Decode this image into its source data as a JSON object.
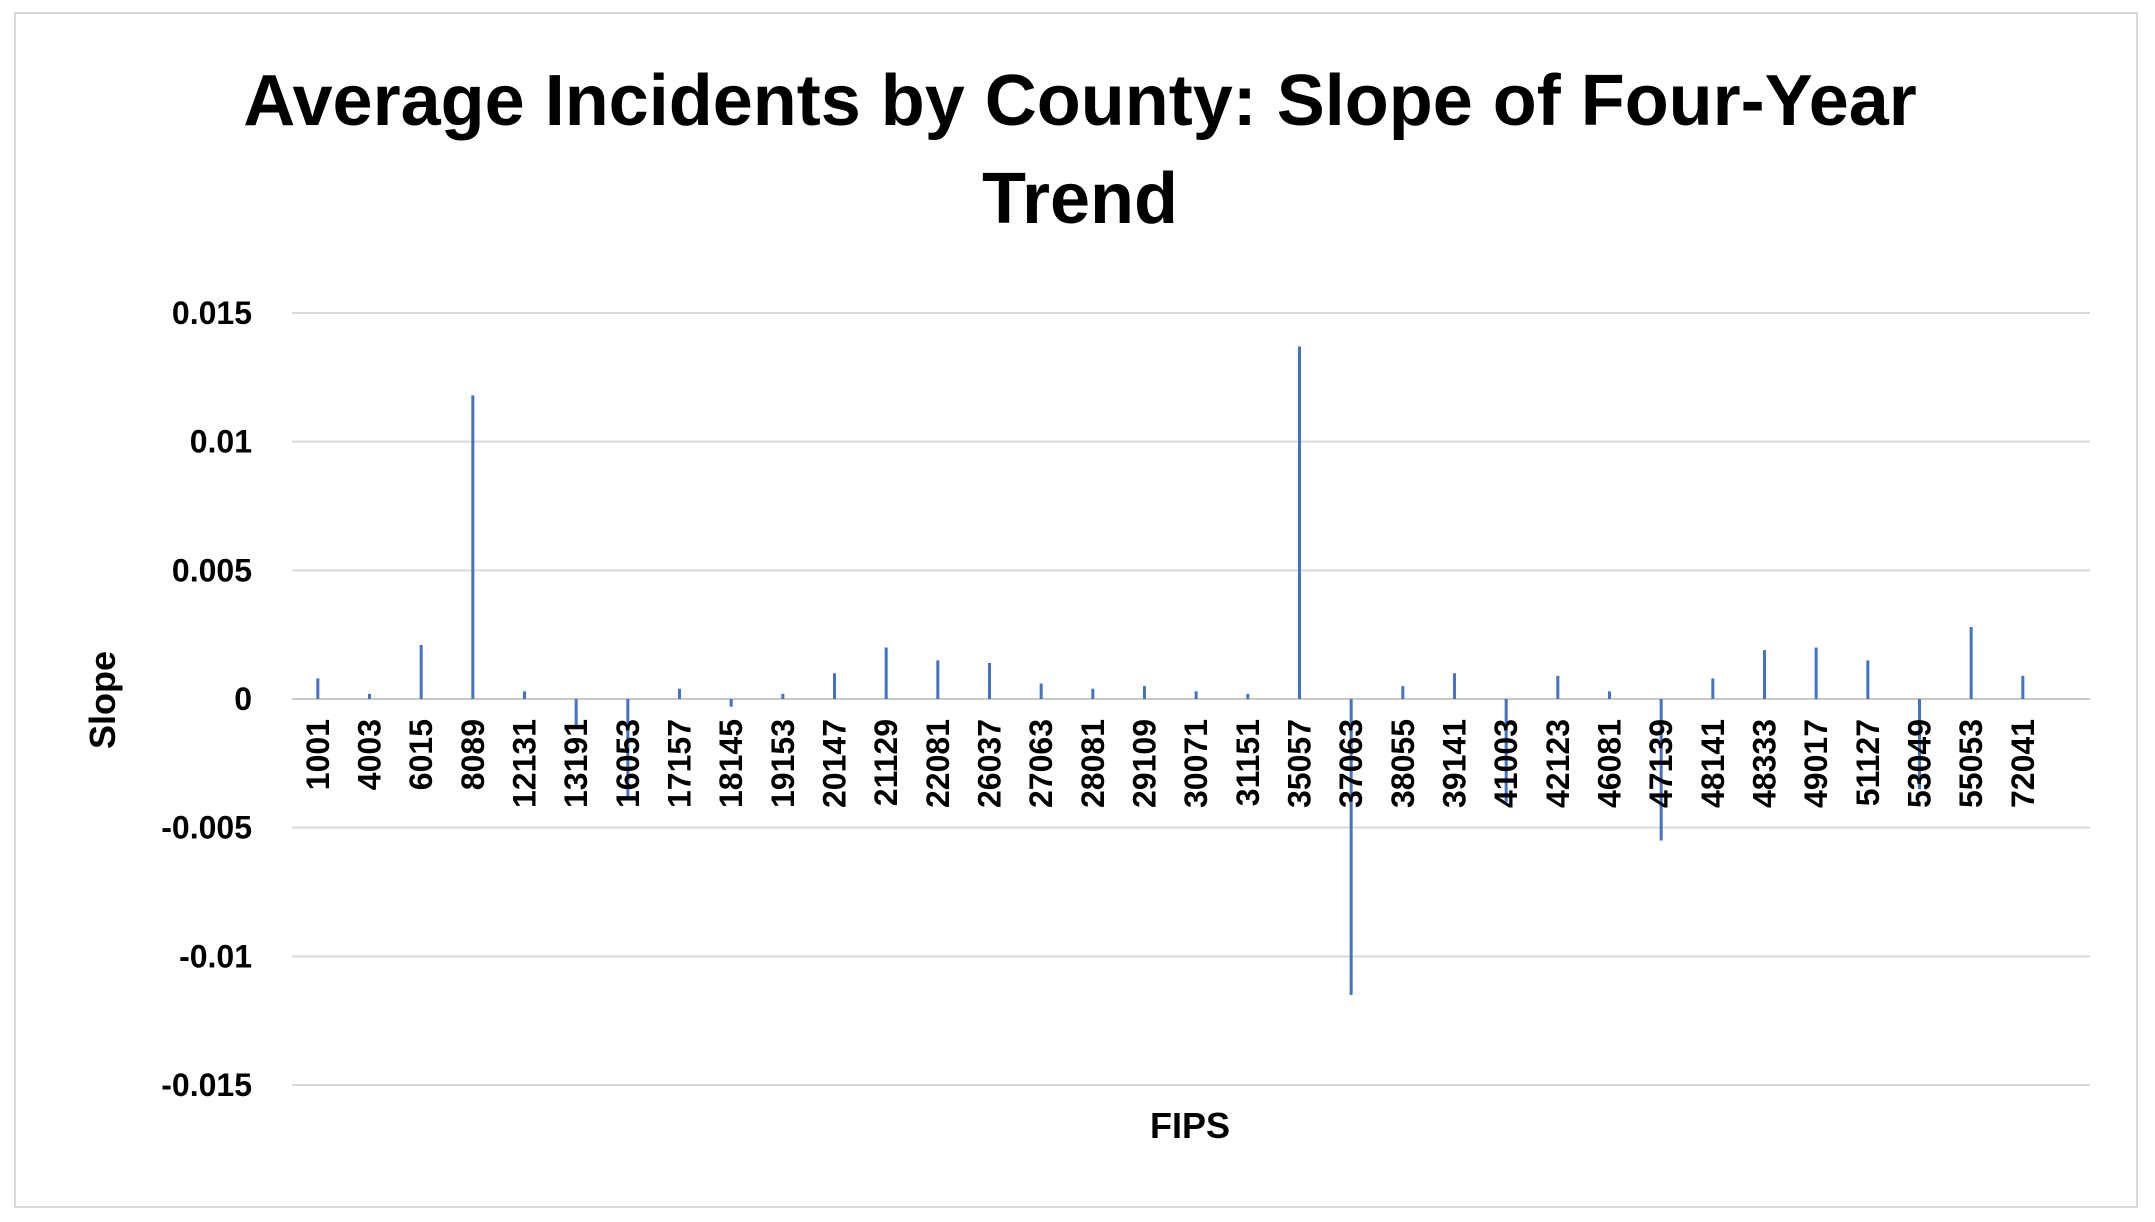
{
  "chart_data": {
    "type": "bar",
    "title": "Average Incidents by County: Slope of Four-Year Trend",
    "xlabel": "FIPS",
    "ylabel": "Slope",
    "ylim": [
      -0.015,
      0.015
    ],
    "y_ticks": [
      "0.015",
      "0.01",
      "0.005",
      "0",
      "-0.005",
      "-0.01",
      "-0.015"
    ],
    "y_tick_values": [
      0.015,
      0.01,
      0.005,
      0,
      -0.005,
      -0.01,
      -0.015
    ],
    "x_tick_labels": [
      "1001",
      "4003",
      "6015",
      "8089",
      "12131",
      "13191",
      "16053",
      "17157",
      "18145",
      "19153",
      "20147",
      "21129",
      "22081",
      "26037",
      "27063",
      "28081",
      "29109",
      "30071",
      "31151",
      "35057",
      "37063",
      "38055",
      "39141",
      "41003",
      "42123",
      "46081",
      "47139",
      "48141",
      "48333",
      "49017",
      "51127",
      "53049",
      "55053",
      "72041"
    ],
    "grid": true,
    "legend": "none",
    "bar_color": "#4472c4",
    "categories": [
      "1001",
      "4003",
      "6015",
      "8089",
      "12131",
      "13191",
      "16053",
      "17157",
      "18145",
      "19153",
      "20147",
      "21129",
      "22081",
      "26037",
      "27063",
      "28081",
      "29109",
      "30071",
      "31151",
      "35057",
      "37063",
      "38055",
      "39141",
      "41003",
      "42123",
      "46081",
      "47139",
      "48141",
      "48333",
      "49017",
      "51127",
      "53049",
      "55053",
      "72041"
    ],
    "values": [
      0.0008,
      0.0002,
      0.0021,
      0.0118,
      0.0003,
      -0.0011,
      -0.0039,
      0.0004,
      -0.0003,
      0.0002,
      0.001,
      0.002,
      0.0015,
      0.0014,
      0.0006,
      0.0004,
      0.0005,
      0.0003,
      0.0002,
      0.0137,
      -0.0115,
      0.0005,
      0.001,
      -0.004,
      0.0009,
      0.0003,
      -0.0055,
      0.0008,
      0.0019,
      0.002,
      0.0015,
      -0.0035,
      0.0028,
      0.0009
    ]
  }
}
